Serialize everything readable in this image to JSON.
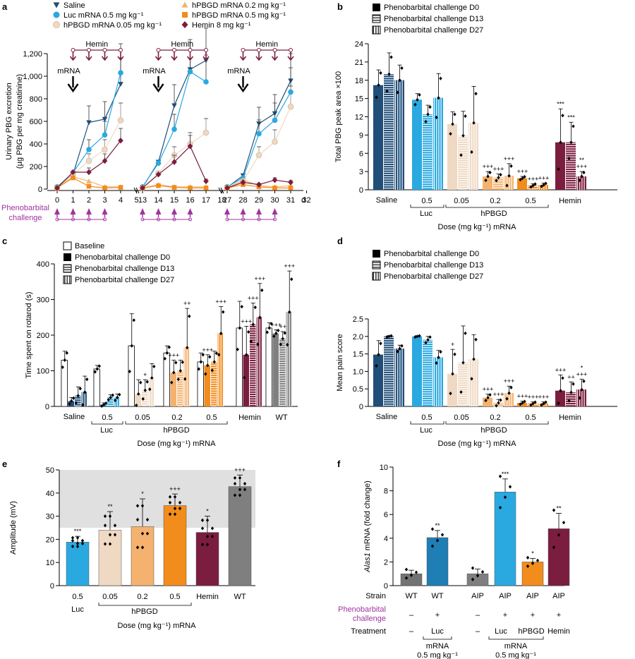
{
  "figure": {
    "colors": {
      "saline": "#1f4e79",
      "luc": "#29a9e0",
      "hpbgd005": "#efd9c3",
      "hpbgd02": "#f4b26e",
      "hpbgd05": "#f28c1c",
      "hemin": "#7b1d3f",
      "wt_gray": "#7f7f7f",
      "magenta": "#a033a0",
      "shade": "#e0e0e0",
      "alas_wt": "#737373",
      "alas_wtluc": "#1f7eb4"
    }
  },
  "chart_data": [
    {
      "panel": "a",
      "type": "line",
      "ylabel": "Urinary PBG excretion",
      "ylabel2": "(µg PBG per mg creatinine)",
      "ylim": [
        0,
        1200
      ],
      "yticks": [
        "0",
        "200",
        "400",
        "600",
        "800",
        "1,000",
        "1,200"
      ],
      "xlabel_unit": "d",
      "challenge_label_1": "Phenobarbital",
      "challenge_label_2": "challenge",
      "hemin_label": "Hemin",
      "mrna_label": "mRNA",
      "legend": [
        {
          "name": "Saline",
          "marker": "tri-down",
          "color": "saline"
        },
        {
          "name": "Luc mRNA 0.5 mg kg⁻¹",
          "marker": "circle",
          "color": "luc"
        },
        {
          "name": "hPBGD mRNA 0.05 mg kg⁻¹",
          "marker": "circle",
          "color": "hpbgd005"
        },
        {
          "name": "hPBGD mRNA 0.2 mg kg⁻¹",
          "marker": "tri-up",
          "color": "hpbgd02"
        },
        {
          "name": "hPBGD mRNA 0.5 mg kg⁻¹",
          "marker": "square",
          "color": "hpbgd05"
        },
        {
          "name": "Hemin 8 mg kg⁻¹",
          "marker": "diamond",
          "color": "hemin"
        }
      ],
      "segments": [
        {
          "x": [
            0,
            1,
            2,
            3,
            4
          ],
          "xticks": [
            "0",
            "1",
            "2",
            "3",
            "4",
            "5"
          ],
          "series": {
            "saline": [
              15,
              130,
              590,
              620,
              930
            ],
            "luc": [
              20,
              145,
              350,
              480,
              1030
            ],
            "hpbgd005": [
              10,
              130,
              250,
              350,
              610
            ],
            "hpbgd02": [
              10,
              110,
              70,
              20,
              20
            ],
            "hpbgd05": [
              10,
              100,
              25,
              10,
              15
            ],
            "hemin": [
              10,
              150,
              150,
              250,
              430
            ]
          }
        },
        {
          "x": [
            13,
            14,
            15,
            16,
            17
          ],
          "xticks": [
            "13",
            "14",
            "15",
            "16",
            "17",
            "18"
          ],
          "series": {
            "saline": [
              15,
              240,
              740,
              1060,
              1140
            ],
            "luc": [
              20,
              230,
              530,
              1040,
              950
            ],
            "hpbgd005": [
              10,
              140,
              300,
              400,
              500
            ],
            "hpbgd02": [
              10,
              40,
              20,
              20,
              20
            ],
            "hpbgd05": [
              10,
              30,
              15,
              10,
              10
            ],
            "hemin": [
              10,
              130,
              240,
              380,
              70
            ]
          }
        },
        {
          "x": [
            27,
            28,
            29,
            30,
            31
          ],
          "xticks": [
            "27",
            "28",
            "29",
            "30",
            "31",
            "32"
          ],
          "series": {
            "saline": [
              15,
              120,
              580,
              670,
              960
            ],
            "luc": [
              20,
              100,
              490,
              610,
              860
            ],
            "hpbgd005": [
              10,
              70,
              300,
              420,
              730
            ],
            "hpbgd02": [
              10,
              80,
              30,
              20,
              30
            ],
            "hpbgd05": [
              10,
              40,
              20,
              10,
              10
            ],
            "hemin": [
              10,
              60,
              40,
              80,
              60
            ]
          }
        }
      ]
    },
    {
      "panel": "b",
      "type": "bar",
      "ylabel": "Total PBG peak area ×100",
      "ylim": [
        0,
        24
      ],
      "yticks": [
        "0",
        "3",
        "6",
        "9",
        "12",
        "15",
        "18",
        "21",
        "24"
      ],
      "legend": [
        "Phenobarbital challenge D0",
        "Phenobarbital challenge D13",
        "Phenobarbital challenge D27"
      ],
      "xlabel": "Dose (mg kg⁻¹) mRNA",
      "groups": [
        {
          "name": "Saline",
          "dose": "",
          "color": "saline",
          "values": [
            17.2,
            19.0,
            18.0
          ],
          "errors": [
            2.5,
            3.5,
            2.5
          ],
          "sig": [
            "",
            "",
            ""
          ]
        },
        {
          "name": "Luc",
          "dose": "0.5",
          "color": "luc",
          "values": [
            14.8,
            12.4,
            15.1
          ],
          "errors": [
            1.0,
            1.5,
            4.0
          ],
          "sig": [
            "",
            "",
            ""
          ]
        },
        {
          "name": "hPBGD",
          "dose": "0.05",
          "color": "hpbgd005",
          "values": [
            10.8,
            8.9,
            11.0
          ],
          "errors": [
            2.0,
            4.0,
            6.0
          ],
          "sig": [
            "",
            "",
            ""
          ]
        },
        {
          "name": "hPBGD",
          "dose": "0.2",
          "color": "hpbgd02",
          "values": [
            2.2,
            2.0,
            2.3
          ],
          "errors": [
            0.8,
            0.6,
            2.0
          ],
          "sig": [
            "+++",
            "+++",
            "+++"
          ]
        },
        {
          "name": "hPBGD",
          "dose": "0.5",
          "color": "hpbgd05",
          "values": [
            1.9,
            0.7,
            0.8
          ],
          "errors": [
            0.3,
            0.3,
            0.3
          ],
          "sig": [
            "+++",
            "+++",
            "+++"
          ]
        },
        {
          "name": "Hemin",
          "dose": "",
          "color": "hemin",
          "values": [
            7.8,
            7.8,
            2.2
          ],
          "errors": [
            5.5,
            3.3,
            0.8
          ],
          "sig": [
            "***",
            "***",
            "**\n+++"
          ]
        }
      ]
    },
    {
      "panel": "c",
      "type": "bar",
      "ylabel": "Time spent on rotarod (s)",
      "ylim": [
        0,
        400
      ],
      "yticks": [
        "0",
        "100",
        "200",
        "300",
        "400"
      ],
      "legend": [
        "Baseline",
        "Phenobarbital challenge D0",
        "Phenobarbital challenge D13",
        "Phenobarbital challenge D27"
      ],
      "xlabel": "Dose (mg kg⁻¹) mRNA",
      "groups": [
        {
          "name": "Saline",
          "dose": "",
          "color": "saline",
          "values": [
            130,
            15,
            30,
            40
          ],
          "errors": [
            25,
            10,
            25,
            45
          ],
          "sig": [
            "",
            "",
            "",
            ""
          ]
        },
        {
          "name": "Luc",
          "dose": "0.5",
          "color": "luc",
          "values": [
            105,
            5,
            25,
            25
          ],
          "errors": [
            10,
            5,
            8,
            10
          ],
          "sig": [
            "",
            "",
            "",
            ""
          ]
        },
        {
          "name": "hPBGD",
          "dose": "0.05",
          "color": "hpbgd005",
          "values": [
            170,
            35,
            45,
            80
          ],
          "errors": [
            90,
            40,
            30,
            40
          ],
          "sig": [
            "",
            "",
            "+",
            ""
          ]
        },
        {
          "name": "hPBGD",
          "dose": "0.2",
          "color": "hpbgd02",
          "values": [
            150,
            95,
            100,
            165
          ],
          "errors": [
            20,
            35,
            30,
            110
          ],
          "sig": [
            "",
            "+++",
            "",
            "++"
          ]
        },
        {
          "name": "hPBGD",
          "dose": "0.5",
          "color": "hpbgd05",
          "values": [
            125,
            115,
            125,
            205
          ],
          "errors": [
            25,
            30,
            30,
            75
          ],
          "sig": [
            "",
            "+++",
            "",
            "+++"
          ]
        },
        {
          "name": "Hemin",
          "dose": "",
          "color": "hemin",
          "values": [
            220,
            145,
            230,
            250
          ],
          "errors": [
            75,
            80,
            60,
            95
          ],
          "sig": [
            "",
            "+++",
            "+++",
            "+++"
          ]
        },
        {
          "name": "WT",
          "dose": "",
          "color": "wt_gray",
          "values": [
            220,
            205,
            190,
            265
          ],
          "errors": [
            15,
            10,
            20,
            115
          ],
          "sig": [
            "",
            "+++",
            "++",
            "+++"
          ]
        }
      ]
    },
    {
      "panel": "d",
      "type": "bar",
      "ylabel": "Mean pain score",
      "ylim": [
        0,
        2.5
      ],
      "yticks": [
        "0",
        "0.5",
        "1.0",
        "1.5",
        "2.0",
        "2.5"
      ],
      "legend": [
        "Phenobarbital challenge D0",
        "Phenobarbital challenge D13",
        "Phenobarbital challenge D27"
      ],
      "xlabel": "Dose (mg kg⁻¹) mRNA",
      "groups": [
        {
          "name": "Saline",
          "dose": "",
          "color": "saline",
          "values": [
            1.48,
            2.0,
            1.65
          ],
          "errors": [
            0.4,
            0.02,
            0.1
          ],
          "sig": [
            "",
            "",
            ""
          ]
        },
        {
          "name": "Luc",
          "dose": "0.5",
          "color": "luc",
          "values": [
            2.0,
            1.9,
            1.4
          ],
          "errors": [
            0.02,
            0.1,
            0.2
          ],
          "sig": [
            "",
            "",
            ""
          ]
        },
        {
          "name": "hPBGD",
          "dose": "0.05",
          "color": "hpbgd005",
          "values": [
            0.93,
            1.25,
            1.35
          ],
          "errors": [
            0.7,
            1.05,
            0.7
          ],
          "sig": [
            "+",
            "",
            ""
          ]
        },
        {
          "name": "hPBGD",
          "dose": "0.2",
          "color": "hpbgd02",
          "values": [
            0.25,
            0.1,
            0.38
          ],
          "errors": [
            0.1,
            0.1,
            0.2
          ],
          "sig": [
            "+++",
            "+++",
            "+++"
          ]
        },
        {
          "name": "hPBGD",
          "dose": "0.5",
          "color": "hpbgd05",
          "values": [
            0.1,
            0.08,
            0.08
          ],
          "errors": [
            0.05,
            0.05,
            0.05
          ],
          "sig": [
            "+++",
            "+++",
            "+++"
          ]
        },
        {
          "name": "Hemin",
          "dose": "",
          "color": "hemin",
          "values": [
            0.45,
            0.4,
            0.48
          ],
          "errors": [
            0.45,
            0.3,
            0.3
          ],
          "sig": [
            "+++",
            "++",
            "*\n+++"
          ]
        }
      ]
    },
    {
      "panel": "e",
      "type": "bar",
      "ylabel": "Amplitude (mV)",
      "ylim": [
        0,
        50
      ],
      "yticks": [
        "0",
        "10",
        "20",
        "30",
        "40",
        "50"
      ],
      "shaded_range": [
        25,
        50
      ],
      "xlabel": "Dose (mg kg⁻¹) mRNA",
      "group_label": "hPBGD",
      "categories": [
        "0.5",
        "0.05",
        "0.2",
        "0.5",
        "Hemin",
        "WT"
      ],
      "sub_labels": [
        "Luc",
        "",
        "",
        "",
        "",
        ""
      ],
      "color_keys": [
        "luc",
        "hpbgd005",
        "hpbgd02",
        "hpbgd05",
        "hemin",
        "wt_gray"
      ],
      "values": [
        18.8,
        24.0,
        25.5,
        34.6,
        23.0,
        42.8
      ],
      "errors": [
        2.5,
        8.0,
        12.0,
        5.0,
        7.0,
        5.0
      ],
      "sig": [
        "***",
        "**",
        "*",
        "+++",
        "*",
        "+++"
      ]
    },
    {
      "panel": "f",
      "type": "bar",
      "ylabel_gene": "Alas1",
      "ylabel_rest": " mRNA (fold change)",
      "ylim": [
        0,
        10
      ],
      "yticks": [
        "0",
        "2",
        "4",
        "6",
        "8",
        "10"
      ],
      "row_labels": [
        "Strain",
        "Phenobarbital",
        "challenge",
        "Treatment"
      ],
      "strain": [
        "WT",
        "WT",
        "AIP",
        "AIP",
        "AIP",
        "AIP"
      ],
      "challenge": [
        "–",
        "+",
        "–",
        "+",
        "+",
        "+"
      ],
      "treatment": [
        "–",
        "Luc",
        "–",
        "Luc",
        "hPBGD",
        "Hemin"
      ],
      "mrna_note_1": "mRNA",
      "mrna_note_2": "0.5 mg kg⁻¹",
      "color_keys": [
        "alas_wt",
        "alas_wtluc",
        "wt_gray",
        "luc",
        "hpbgd05",
        "hemin"
      ],
      "values": [
        1.0,
        4.05,
        1.0,
        7.9,
        2.0,
        4.8
      ],
      "errors": [
        0.3,
        0.6,
        0.4,
        1.1,
        0.3,
        1.3
      ],
      "sig": [
        "",
        "**",
        "",
        "***",
        "*",
        "**"
      ]
    }
  ],
  "panel_labels": [
    "a",
    "b",
    "c",
    "d",
    "e",
    "f"
  ]
}
